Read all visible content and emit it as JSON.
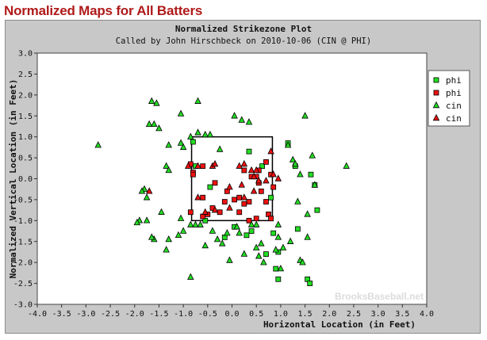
{
  "header": {
    "title": "Normalized Maps for All Batters"
  },
  "chart_data": {
    "type": "scatter",
    "title": "Normalized Strikezone Plot",
    "subtitle": "Called by John Hirschbeck on 2010-10-06 (CIN @ PHI)",
    "xlabel": "Horizontal Location (in Feet)",
    "ylabel": "Normalized Vertical Location (in Feet)",
    "xlim": [
      -4.0,
      4.0
    ],
    "ylim": [
      -3.0,
      3.0
    ],
    "xticks": [
      "-4.0",
      "-3.5",
      "-3.0",
      "-2.5",
      "-2.0",
      "-1.5",
      "-1.0",
      "-0.5",
      "0.0",
      "0.5",
      "1.0",
      "1.5",
      "2.0",
      "2.5",
      "3.0",
      "3.5",
      "4.0"
    ],
    "yticks": [
      "3.0",
      "2.5",
      "2.0",
      "1.5",
      "1.0",
      "0.5",
      "0.0",
      "-0.5",
      "-1.0",
      "-1.5",
      "-2.0",
      "-2.5",
      "-3.0"
    ],
    "grid": false,
    "legend_position": "top-right",
    "strike_zone": {
      "x": [
        -0.83,
        0.83
      ],
      "y": [
        -1.0,
        1.0
      ]
    },
    "watermark": "BrooksBaseball.net",
    "colors": {
      "green": "#22dd22",
      "red": "#ee1111",
      "frame": "#c8c8c8",
      "title": "#b01a1a"
    },
    "series": [
      {
        "name": "phi",
        "marker": "square",
        "color": "#22dd22",
        "x": [
          -0.8,
          -0.75,
          -0.45,
          0.35,
          0.62,
          0.8,
          1.15,
          1.3,
          1.62,
          1.7,
          1.75,
          1.35,
          0.85,
          0.4,
          0.3,
          0.05,
          -0.15,
          -0.55,
          0.7,
          0.95,
          0.9,
          0.95,
          1.55,
          1.6
        ],
        "y": [
          0.88,
          0.3,
          -0.2,
          0.65,
          0.3,
          -0.45,
          0.85,
          0.3,
          0.1,
          -0.15,
          -0.75,
          -1.2,
          -1.3,
          -1.25,
          -1.35,
          -1.15,
          -1.4,
          -1.0,
          -1.8,
          -1.75,
          -2.15,
          -2.4,
          -2.4,
          -2.5
        ]
      },
      {
        "name": "phi",
        "marker": "square",
        "color": "#ee1111",
        "x": [
          -0.85,
          -0.6,
          -0.8,
          -0.35,
          -0.1,
          -0.6,
          -0.5,
          -0.25,
          -0.15,
          -0.85,
          -0.6,
          -0.4,
          0.05,
          0.25,
          0.4,
          0.15,
          0.35,
          0.5,
          0.55,
          0.55,
          0.6,
          0.7,
          0.8,
          0.85,
          0.7,
          0.25,
          0.15,
          0.75,
          0.8,
          0.5,
          0.35,
          -0.8
        ],
        "y": [
          0.35,
          0.3,
          0.15,
          -0.1,
          -0.3,
          -0.45,
          -0.85,
          -0.8,
          -0.55,
          -0.8,
          -0.9,
          -0.7,
          -0.5,
          0.2,
          0.05,
          -0.45,
          -0.55,
          0.05,
          0.2,
          -0.1,
          -0.3,
          0.4,
          0.1,
          -0.2,
          -0.55,
          -0.6,
          -0.8,
          -0.85,
          -0.95,
          -0.95,
          -1.0,
          0.1
        ]
      },
      {
        "name": "cin",
        "marker": "triangle",
        "color": "#22dd22",
        "x": [
          -1.65,
          -1.05,
          -1.5,
          -1.6,
          -1.7,
          -1.55,
          -2.75,
          -1.35,
          -1.3,
          -0.7,
          -0.7,
          -0.55,
          -1.8,
          -1.3,
          -1.05,
          -1.0,
          -0.85,
          -0.45,
          -0.65,
          0.05,
          0.2,
          0.35,
          -0.25,
          0.5,
          0.95,
          1.5,
          1.15,
          1.25,
          1.3,
          1.4,
          1.65,
          1.7,
          2.35,
          1.55,
          1.35,
          1.55,
          1.2,
          0.95,
          1.05,
          1.0,
          0.6,
          0.55,
          0.65,
          0.9,
          1.4,
          1.45,
          0.4,
          0.1,
          -0.1,
          0.25,
          -0.05,
          -0.3,
          -0.4,
          -0.55,
          -0.75,
          -0.2,
          -1.0,
          -1.1,
          -1.3,
          -1.35,
          -1.6,
          -1.65,
          -1.75,
          -1.75,
          -1.85,
          -1.9,
          -1.95,
          -1.45,
          -1.05,
          -0.85,
          -0.85,
          0.15,
          0.5
        ],
        "y": [
          1.85,
          1.55,
          1.2,
          1.3,
          1.3,
          1.8,
          0.8,
          0.3,
          0.2,
          1.85,
          1.1,
          1.05,
          -0.25,
          0.8,
          0.85,
          0.75,
          1.0,
          1.05,
          -1.1,
          1.5,
          1.4,
          1.35,
          0.7,
          -1.1,
          -1.1,
          1.5,
          0.8,
          0.45,
          0.35,
          0.1,
          0.55,
          -0.15,
          0.3,
          -0.85,
          -0.55,
          -1.4,
          -1.5,
          -1.4,
          -1.65,
          -2.15,
          -1.55,
          -1.85,
          -2.0,
          -1.7,
          -1.95,
          -2.0,
          -1.1,
          -1.15,
          -1.3,
          -1.8,
          -1.95,
          -1.45,
          -1.25,
          -1.6,
          -1.1,
          -1.55,
          -1.25,
          -1.35,
          -1.45,
          -1.7,
          -1.45,
          -1.4,
          -1.0,
          -0.45,
          -0.3,
          -1.0,
          -1.05,
          -0.8,
          -0.95,
          -1.1,
          -2.35,
          -1.3,
          -1.65
        ],
        "y_note": ""
      },
      {
        "name": "cin",
        "marker": "triangle",
        "color": "#ee1111",
        "x": [
          -1.7,
          -0.9,
          -0.7,
          -0.4,
          -0.35,
          0.15,
          0.25,
          0.4,
          0.5,
          0.45,
          0.8,
          0.85,
          -0.05,
          -0.7,
          -0.05,
          0.45,
          0.25,
          0.2,
          0.7,
          0.55,
          -0.35,
          -0.55,
          0.95
        ],
        "y": [
          -0.3,
          0.3,
          0.3,
          0.3,
          0.35,
          0.3,
          0.35,
          0.2,
          0.2,
          0.05,
          0.65,
          0.1,
          -0.2,
          -0.45,
          -0.7,
          -0.3,
          -0.45,
          -0.15,
          -0.05,
          -0.05,
          -0.75,
          -0.8,
          0.0
        ]
      }
    ]
  }
}
